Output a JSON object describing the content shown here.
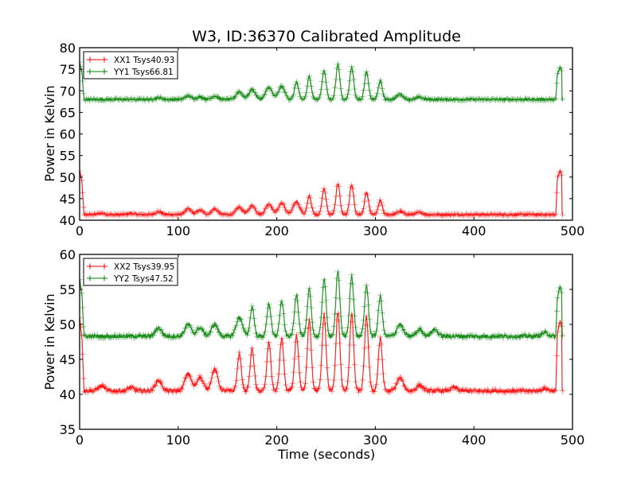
{
  "chart_data": [
    {
      "type": "line",
      "title": "W3, ID:36370 Calibrated Amplitude",
      "xlabel": "",
      "ylabel": "Power in Kelvin",
      "xlim": [
        0,
        500
      ],
      "ylim": [
        40,
        80
      ],
      "xticks": [
        "0",
        "100",
        "200",
        "300",
        "400",
        "500"
      ],
      "yticks": [
        "40",
        "45",
        "50",
        "55",
        "60",
        "65",
        "70",
        "75",
        "80"
      ],
      "legend_position": "top-left",
      "grid": false,
      "series": [
        {
          "name": "XX1 Tsys40.93",
          "color": "#ff0000",
          "marker": "+",
          "baseline": 41.3,
          "start_spike": 51.5,
          "end_spike": 51.5,
          "x_end": 490,
          "peaks": [
            [
              22,
              41.6
            ],
            [
              52,
              41.6
            ],
            [
              80,
              42.0
            ],
            [
              110,
              42.6
            ],
            [
              122,
              42.3
            ],
            [
              137,
              42.6
            ],
            [
              162,
              43.0
            ],
            [
              175,
              43.4
            ],
            [
              192,
              43.8
            ],
            [
              205,
              44.0
            ],
            [
              220,
              44.3
            ],
            [
              233,
              45.6
            ],
            [
              248,
              47.4
            ],
            [
              262,
              48.5
            ],
            [
              276,
              48.3
            ],
            [
              291,
              46.4
            ],
            [
              305,
              44.5
            ],
            [
              325,
              42.0
            ],
            [
              345,
              41.8
            ]
          ]
        },
        {
          "name": "YY1 Tsys66.81",
          "color": "#008000",
          "marker": "+",
          "baseline": 68.0,
          "start_spike": 76.5,
          "end_spike": 75.5,
          "x_end": 490,
          "peaks": [
            [
              80,
              68.4
            ],
            [
              110,
              68.8
            ],
            [
              122,
              68.6
            ],
            [
              137,
              68.8
            ],
            [
              162,
              69.8
            ],
            [
              175,
              70.3
            ],
            [
              192,
              70.8
            ],
            [
              205,
              71.0
            ],
            [
              220,
              72.0
            ],
            [
              233,
              73.3
            ],
            [
              248,
              74.8
            ],
            [
              262,
              76.0
            ],
            [
              276,
              75.5
            ],
            [
              291,
              74.3
            ],
            [
              305,
              72.3
            ],
            [
              325,
              69.2
            ],
            [
              345,
              68.5
            ]
          ]
        }
      ]
    },
    {
      "type": "line",
      "title": "",
      "xlabel": "Time (seconds)",
      "ylabel": "Power in Kelvin",
      "xlim": [
        0,
        500
      ],
      "ylim": [
        35,
        60
      ],
      "xticks": [
        "0",
        "100",
        "200",
        "300",
        "400",
        "500"
      ],
      "yticks": [
        "35",
        "40",
        "45",
        "50",
        "55",
        "60"
      ],
      "legend_position": "top-left",
      "grid": false,
      "series": [
        {
          "name": "XX2 Tsys39.95",
          "color": "#ff0000",
          "marker": "+",
          "baseline": 40.5,
          "start_spike": 51.0,
          "end_spike": 50.5,
          "x_end": 490,
          "peaks": [
            [
              22,
              41.2
            ],
            [
              52,
              41.0
            ],
            [
              80,
              42.0
            ],
            [
              110,
              43.0
            ],
            [
              122,
              42.5
            ],
            [
              137,
              43.5
            ],
            [
              162,
              45.8
            ],
            [
              175,
              46.5
            ],
            [
              192,
              47.5
            ],
            [
              205,
              48.0
            ],
            [
              220,
              48.3
            ],
            [
              233,
              50.5
            ],
            [
              248,
              51.5
            ],
            [
              262,
              51.8
            ],
            [
              276,
              51.5
            ],
            [
              291,
              51.0
            ],
            [
              305,
              48.0
            ],
            [
              325,
              42.3
            ],
            [
              345,
              41.3
            ],
            [
              380,
              41.0
            ],
            [
              472,
              40.8
            ]
          ]
        },
        {
          "name": "YY2 Tsys47.52",
          "color": "#008000",
          "marker": "+",
          "baseline": 48.3,
          "start_spike": 56.5,
          "end_spike": 55.5,
          "x_end": 490,
          "peaks": [
            [
              80,
              49.5
            ],
            [
              110,
              50.0
            ],
            [
              122,
              49.5
            ],
            [
              137,
              50.0
            ],
            [
              162,
              51.0
            ],
            [
              175,
              52.5
            ],
            [
              192,
              53.0
            ],
            [
              205,
              53.3
            ],
            [
              220,
              54.3
            ],
            [
              233,
              55.0
            ],
            [
              248,
              56.5
            ],
            [
              262,
              57.5
            ],
            [
              276,
              57.0
            ],
            [
              291,
              55.5
            ],
            [
              305,
              54.0
            ],
            [
              325,
              50.0
            ],
            [
              345,
              49.3
            ],
            [
              360,
              49.3
            ],
            [
              472,
              48.8
            ]
          ]
        }
      ]
    }
  ]
}
